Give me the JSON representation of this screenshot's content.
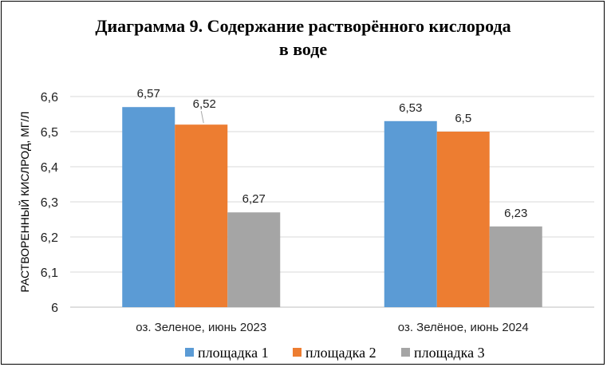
{
  "chart_data": {
    "type": "bar",
    "title_line1": "Диаграмма 9. Содержание растворённого кислорода",
    "title_line2": "в воде",
    "ylabel": "РАСТВОРЕННЫЙ КИСЛРОД, МГ/Л",
    "xlabel": "",
    "ylim": [
      6,
      6.6
    ],
    "yticks": [
      6,
      6.1,
      6.2,
      6.3,
      6.4,
      6.5,
      6.6
    ],
    "ytick_labels": [
      "6",
      "6,1",
      "6,2",
      "6,3",
      "6,4",
      "6,5",
      "6,6"
    ],
    "grid": true,
    "legend_position": "bottom",
    "categories": [
      "оз. Зеленое, июнь 2023",
      "оз. Зелёное, июнь 2024"
    ],
    "series": [
      {
        "name": "площадка 1",
        "color": "#5b9bd5",
        "values": [
          6.57,
          6.53
        ],
        "labels": [
          "6,57",
          "6,53"
        ]
      },
      {
        "name": "площадка 2",
        "color": "#ed7d31",
        "values": [
          6.52,
          6.5
        ],
        "labels": [
          "6,52",
          "6,5"
        ]
      },
      {
        "name": "площадка 3",
        "color": "#a5a5a5",
        "values": [
          6.27,
          6.23
        ],
        "labels": [
          "6,27",
          "6,23"
        ]
      }
    ]
  }
}
